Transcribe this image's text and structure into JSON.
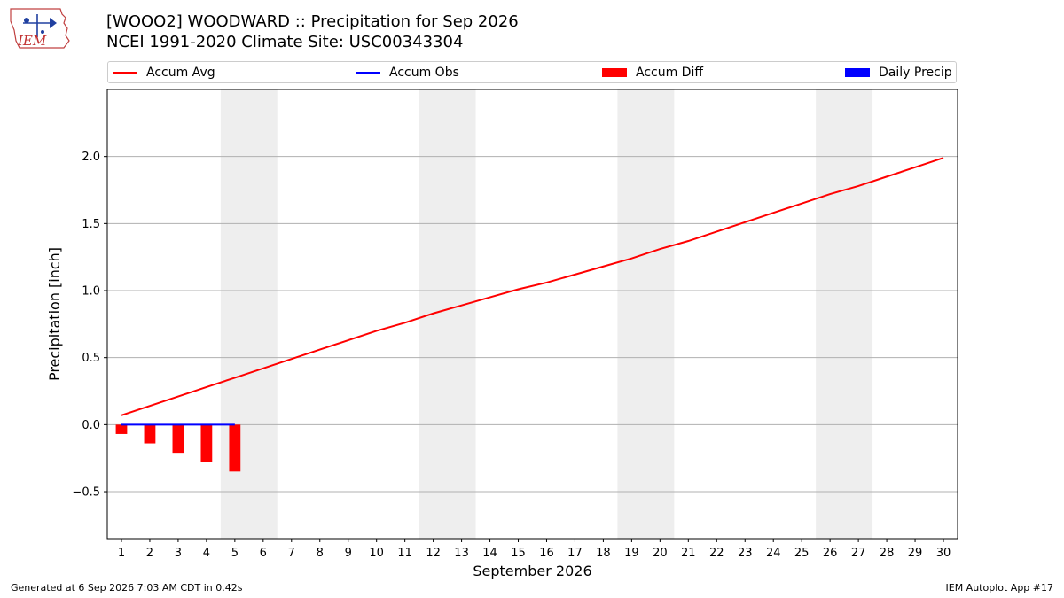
{
  "header": {
    "title_line1": "[WOOO2] WOODWARD :: Precipitation for Sep 2026",
    "title_line2": "NCEI 1991-2020 Climate Site: USC00343304"
  },
  "logo": {
    "text": "IEM",
    "icon": "iem-iowa-logo-icon"
  },
  "legend": [
    {
      "label": "Accum Avg",
      "kind": "line",
      "color": "#ff0000"
    },
    {
      "label": "Accum Obs",
      "kind": "line",
      "color": "#0000ff"
    },
    {
      "label": "Accum Diff",
      "kind": "box",
      "color": "#ff0000"
    },
    {
      "label": "Daily Precip",
      "kind": "box",
      "color": "#0000ff"
    }
  ],
  "chart_data": {
    "type": "line",
    "xlabel": "September 2026",
    "ylabel": "Precipitation [inch]",
    "xlim": [
      0.5,
      30.5
    ],
    "ylim": [
      -0.85,
      2.5
    ],
    "yticks": [
      -0.5,
      0.0,
      0.5,
      1.0,
      1.5,
      2.0
    ],
    "ytick_labels": [
      "−0.5",
      "0.0",
      "0.5",
      "1.0",
      "1.5",
      "2.0"
    ],
    "xticks": [
      1,
      2,
      3,
      4,
      5,
      6,
      7,
      8,
      9,
      10,
      11,
      12,
      13,
      14,
      15,
      16,
      17,
      18,
      19,
      20,
      21,
      22,
      23,
      24,
      25,
      26,
      27,
      28,
      29,
      30
    ],
    "grid": "horizontal",
    "weekend_bands": [
      [
        5,
        6
      ],
      [
        12,
        13
      ],
      [
        19,
        20
      ],
      [
        26,
        27
      ]
    ],
    "series": [
      {
        "name": "Accum Avg",
        "kind": "line",
        "color": "#ff0000",
        "x": [
          1,
          2,
          3,
          4,
          5,
          6,
          7,
          8,
          9,
          10,
          11,
          12,
          13,
          14,
          15,
          16,
          17,
          18,
          19,
          20,
          21,
          22,
          23,
          24,
          25,
          26,
          27,
          28,
          29,
          30
        ],
        "values": [
          0.07,
          0.14,
          0.21,
          0.28,
          0.35,
          0.42,
          0.49,
          0.56,
          0.63,
          0.7,
          0.76,
          0.83,
          0.89,
          0.95,
          1.01,
          1.06,
          1.12,
          1.18,
          1.24,
          1.31,
          1.37,
          1.44,
          1.51,
          1.58,
          1.65,
          1.72,
          1.78,
          1.85,
          1.92,
          1.99
        ]
      },
      {
        "name": "Accum Obs",
        "kind": "line",
        "color": "#0000ff",
        "x": [
          1,
          2,
          3,
          4,
          5
        ],
        "values": [
          0.0,
          0.0,
          0.0,
          0.0,
          0.0
        ]
      },
      {
        "name": "Accum Diff",
        "kind": "bar",
        "color": "#ff0000",
        "x": [
          1,
          2,
          3,
          4,
          5
        ],
        "values": [
          -0.07,
          -0.14,
          -0.21,
          -0.28,
          -0.35
        ]
      },
      {
        "name": "Daily Precip",
        "kind": "bar",
        "color": "#0000ff",
        "x": [
          1,
          2,
          3,
          4,
          5
        ],
        "values": [
          0.0,
          0.0,
          0.0,
          0.0,
          0.0
        ]
      }
    ]
  },
  "footer": {
    "left": "Generated at 6 Sep 2026 7:03 AM CDT in 0.42s",
    "right": "IEM Autoplot App #17"
  }
}
